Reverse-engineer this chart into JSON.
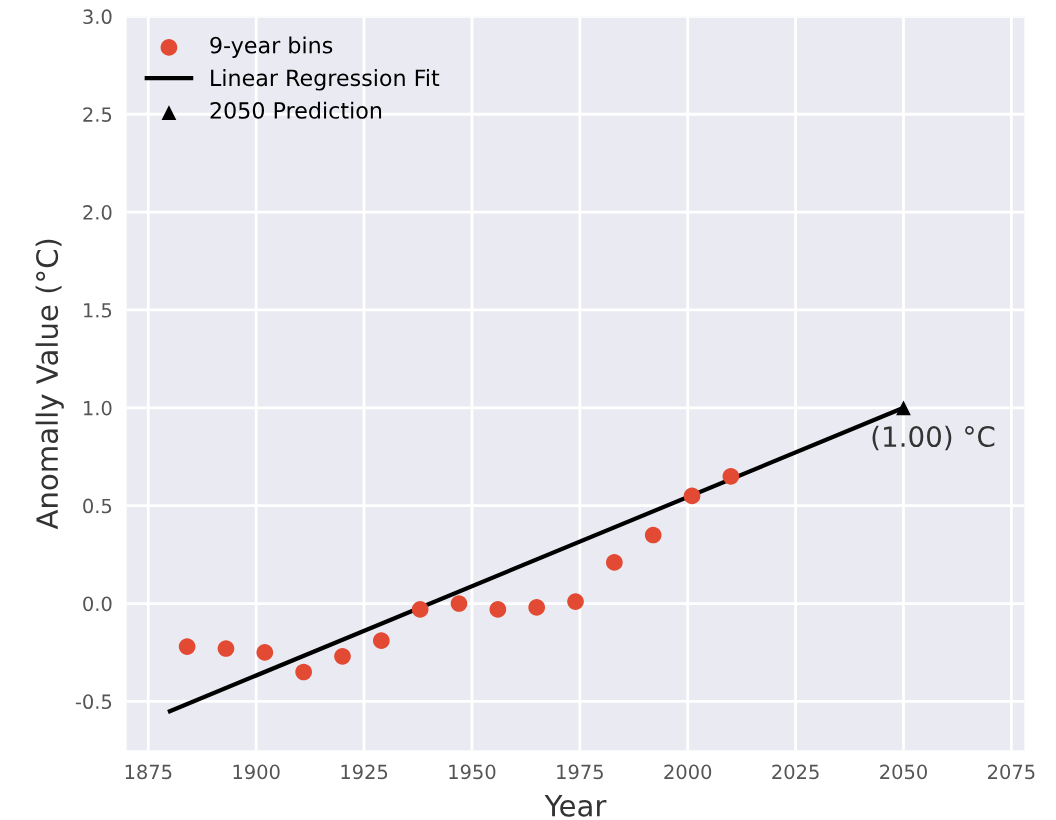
{
  "chart_data": {
    "type": "scatter",
    "xlabel": "Year",
    "ylabel": "Anomally Value (°C)",
    "xlim": [
      1870,
      2078
    ],
    "ylim": [
      -0.75,
      3.0
    ],
    "xticks": [
      1875,
      1900,
      1925,
      1950,
      1975,
      2000,
      2025,
      2050,
      2075
    ],
    "yticks": [
      {
        "value": -0.5,
        "label": "-0.5"
      },
      {
        "value": 0.0,
        "label": "0.0"
      },
      {
        "value": 0.5,
        "label": "0.5"
      },
      {
        "value": 1.0,
        "label": "1.0"
      },
      {
        "value": 1.5,
        "label": "1.5"
      },
      {
        "value": 2.0,
        "label": "2.0"
      },
      {
        "value": 2.5,
        "label": "2.5"
      },
      {
        "value": 3.0,
        "label": "3.0"
      }
    ],
    "grid": true,
    "legend": "top left",
    "series": [
      {
        "name": "9-year bins",
        "marker": "circle",
        "color": "#e24a33",
        "x": [
          1884,
          1893,
          1902,
          1911,
          1920,
          1929,
          1938,
          1947,
          1956,
          1965,
          1974,
          1983,
          1992,
          2001,
          2010
        ],
        "values": [
          -0.22,
          -0.23,
          -0.25,
          -0.35,
          -0.27,
          -0.19,
          -0.03,
          0.0,
          -0.03,
          -0.02,
          0.01,
          0.21,
          0.35,
          0.55,
          0.65
        ]
      },
      {
        "name": "Linear Regression Fit",
        "type": "line",
        "color": "#000000",
        "x": [
          1880,
          2050
        ],
        "values": [
          -0.55,
          1.0
        ]
      },
      {
        "name": "2050 Prediction",
        "marker": "triangle",
        "color": "#000000",
        "x": [
          2050
        ],
        "values": [
          1.0
        ]
      }
    ],
    "annotations": [
      {
        "text": "(1.00) °C",
        "x": 2050,
        "y": 1.0
      }
    ]
  }
}
